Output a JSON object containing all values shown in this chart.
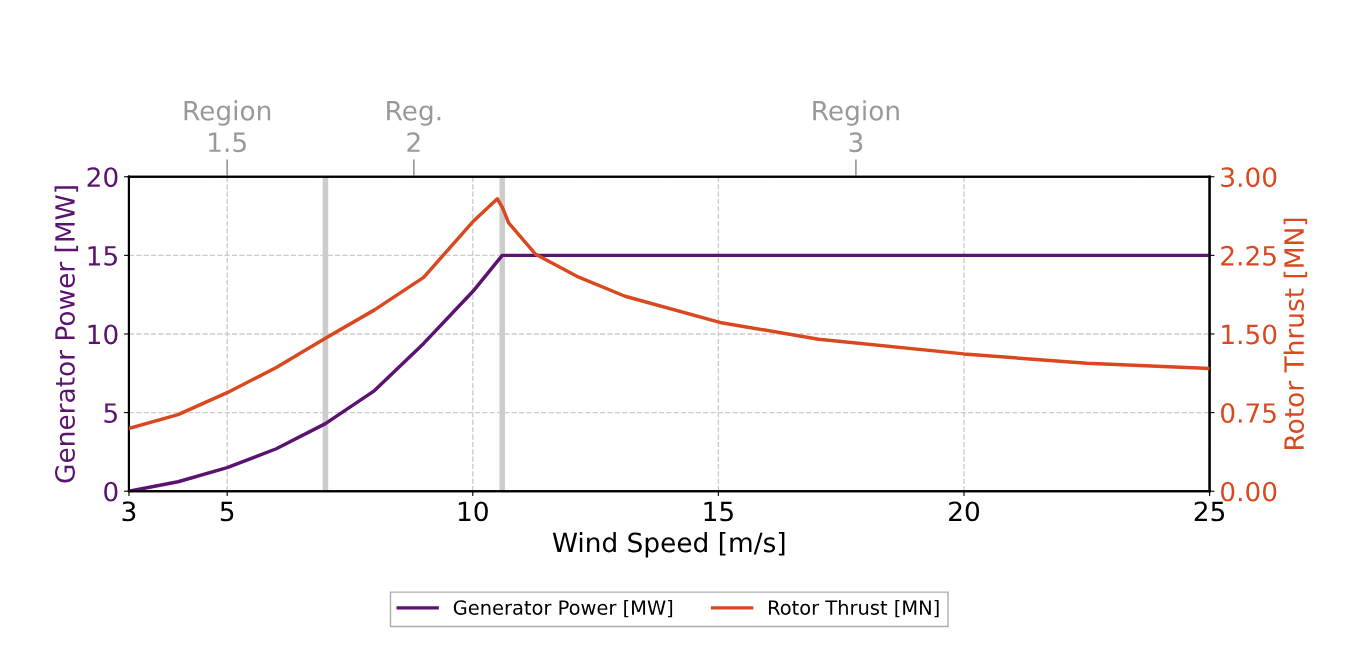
{
  "chart_data": {
    "type": "line",
    "xlabel": "Wind Speed [m/s]",
    "ylabel": "Generator Power [MW]",
    "y2label": "Rotor Thrust [MN]",
    "xlim": [
      3,
      25
    ],
    "xticks": [
      3,
      5,
      10,
      15,
      20,
      25
    ],
    "ylim": [
      0,
      20
    ],
    "yticks": [
      0,
      5,
      10,
      15,
      20
    ],
    "y2lim": [
      0,
      3
    ],
    "y2ticks": [
      {
        "value": 0,
        "label": "0.00"
      },
      {
        "value": 0.75,
        "label": "0.75"
      },
      {
        "value": 1.5,
        "label": "1.50"
      },
      {
        "value": 2.25,
        "label": "2.25"
      },
      {
        "value": 3,
        "label": "3.00"
      }
    ],
    "annotations": [
      "Region\n1.5",
      "Reg.\n2",
      "Region\n3"
    ],
    "ref_lines": [
      {
        "axis": "x",
        "value": 7,
        "color": "#cccccc"
      },
      {
        "axis": "x",
        "value": 10.6,
        "color": "#cccccc"
      }
    ],
    "series": [
      {
        "name": "Generator Power [MW]",
        "color": "#5b1270",
        "x": [
          3,
          4,
          5,
          6,
          7,
          8,
          9,
          10,
          10.6,
          25
        ],
        "values": [
          0,
          0.6,
          1.5,
          2.7,
          4.3,
          6.4,
          9.4,
          12.7,
          15,
          15
        ]
      },
      {
        "name": "Rotor Thrust [MN]",
        "color": "#d9481f",
        "axis": "y2",
        "x": [
          3,
          4,
          5,
          6,
          7,
          8,
          9,
          10,
          10.5,
          10.6,
          10.73,
          11.28,
          12.12,
          13.1,
          15.03,
          17.04,
          20,
          22.5,
          25
        ],
        "values": [
          0.6,
          0.73,
          0.94,
          1.18,
          1.46,
          1.73,
          2.04,
          2.57,
          2.79,
          2.71,
          2.56,
          2.26,
          2.05,
          1.86,
          1.61,
          1.45,
          1.31,
          1.22,
          1.17
        ]
      }
    ],
    "grid": true,
    "legend": "bottom",
    "line_style": "solid",
    "marker": "none"
  }
}
